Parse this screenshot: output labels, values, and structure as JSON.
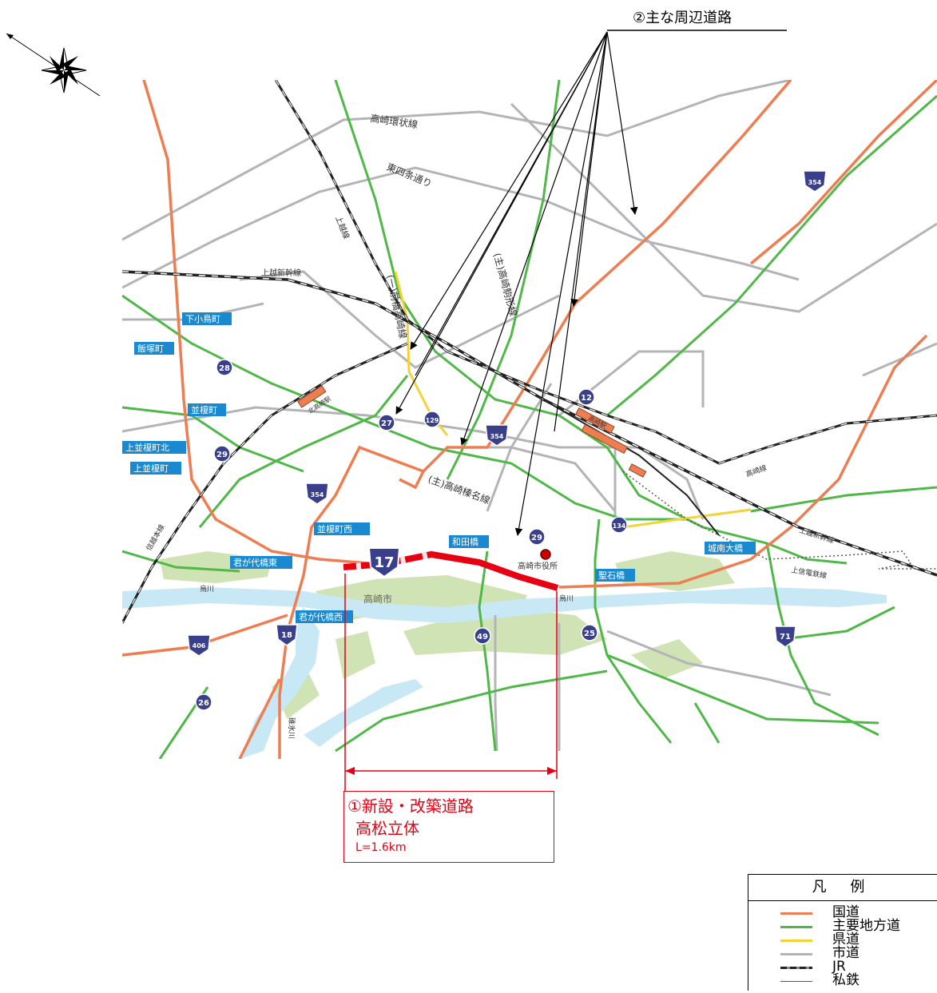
{
  "colors": {
    "national": "#ef7d52",
    "main_local": "#4fb848",
    "prefectural": "#f3d33a",
    "city": "#b4b4b8",
    "jr": "#222222",
    "private": "#555555",
    "river": "#c9e8f6",
    "green": "#cfe3b4",
    "highlight": "#e60012",
    "sign": "#1b89d0"
  },
  "callout": {
    "title": "②主な周辺道路"
  },
  "section": {
    "line1": "①新設・改築道路",
    "line2": "高松立体",
    "line3": "L=1.6km"
  },
  "road_labels": {
    "ring": "高崎環状線",
    "higashishijo": "東四条通り",
    "joetsu_line": "上越線",
    "shinkansen": "上越新幹線",
    "maebashi": "(一)前橋高崎線",
    "komagata": "(主)高崎駒形線",
    "haruna": "(主)高崎榛名線",
    "shinetsu": "信越本線",
    "takasaki_line": "高崎線",
    "shinkansen_east": "上越新幹線",
    "joshin": "上信電鉄線",
    "river_karasu": "烏川",
    "river_karasu2": "烏川",
    "river_usui": "碓氷川",
    "city_name": "高崎市",
    "city_hall": "高崎市役所",
    "takasaki_station": "高崎駅",
    "kitatakasaki": "北高崎駅"
  },
  "places": [
    "下小鳥町",
    "飯塚町",
    "並榎町",
    "上並榎町北",
    "上並榎町",
    "並榎町西",
    "君が代橋東",
    "君が代橋西",
    "和田橋",
    "聖石橋",
    "城南大橋"
  ],
  "route_numbers": [
    "17",
    "354",
    "354",
    "354",
    "28",
    "29",
    "27",
    "129",
    "12",
    "134",
    "29",
    "406",
    "18",
    "49",
    "25",
    "71",
    "26"
  ],
  "legend": {
    "title": "凡 例",
    "items": [
      {
        "label": "国道",
        "color": "#ef7d52"
      },
      {
        "label": "主要地方道",
        "color": "#4fb848"
      },
      {
        "label": "県道",
        "color": "#f3d33a"
      },
      {
        "label": "市道",
        "color": "#b4b4b8"
      },
      {
        "label": "JR",
        "color": "#222222"
      },
      {
        "label": "私鉄",
        "color": "#555555"
      }
    ]
  }
}
